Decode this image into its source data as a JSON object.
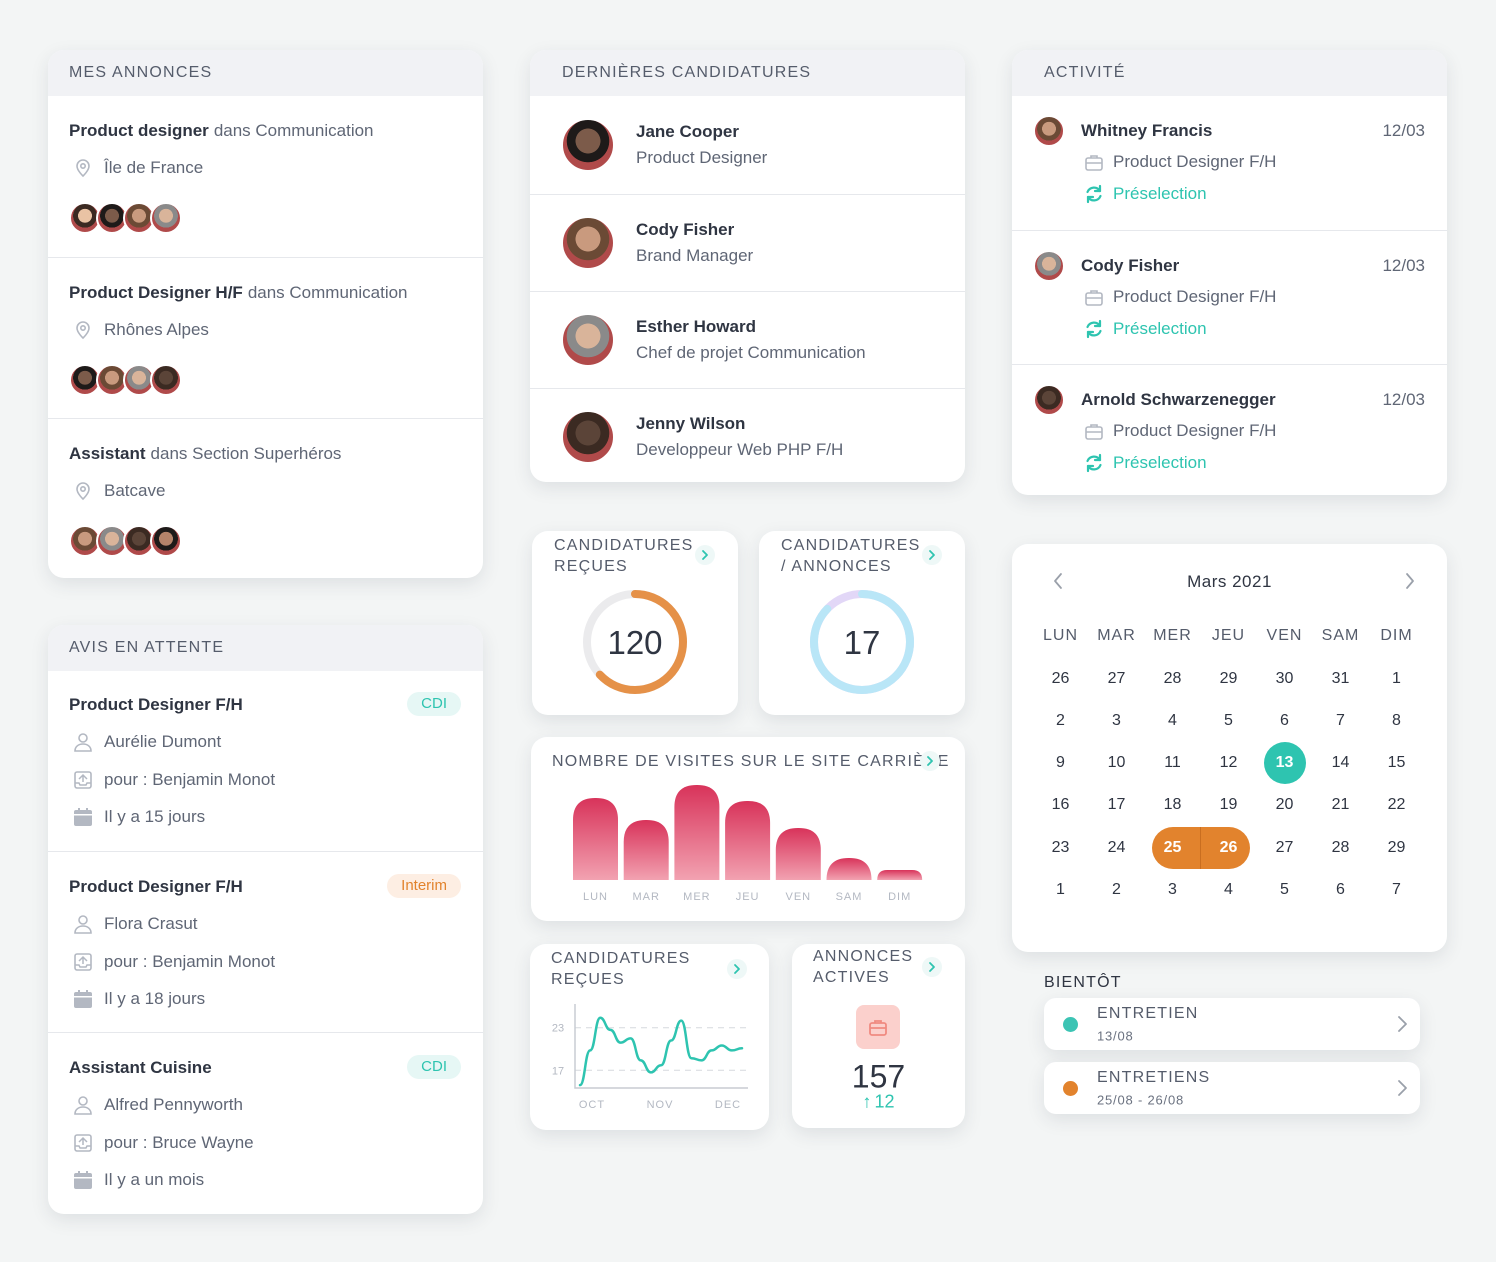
{
  "mes_annonces": {
    "title": "MES ANNONCES",
    "items": [
      {
        "job": "Product designer",
        "dans": "dans Communication",
        "location": "Île de France"
      },
      {
        "job": "Product Designer H/F",
        "dans": "dans Communication",
        "location": "Rhônes Alpes"
      },
      {
        "job": "Assistant",
        "dans": "dans Section Superhéros",
        "location": "Batcave"
      }
    ]
  },
  "avis": {
    "title": "AVIS EN ATTENTE",
    "items": [
      {
        "job": "Product Designer F/H",
        "tag": "CDI",
        "person": "Aurélie Dumont",
        "pour": "pour : Benjamin Monot",
        "when": "Il y a 15 jours"
      },
      {
        "job": "Product Designer F/H",
        "tag": "Interim",
        "person": "Flora Crasut",
        "pour": "pour : Benjamin Monot",
        "when": "Il y a 18 jours"
      },
      {
        "job": "Assistant Cuisine",
        "tag": "CDI",
        "person": "Alfred Pennyworth",
        "pour": "pour : Bruce Wayne",
        "when": "Il y a un mois"
      }
    ]
  },
  "candidatures": {
    "title": "DERNIÈRES CANDIDATURES",
    "items": [
      {
        "name": "Jane Cooper",
        "role": "Product Designer"
      },
      {
        "name": "Cody Fisher",
        "role": "Brand Manager"
      },
      {
        "name": "Esther Howard",
        "role": "Chef de projet Communication"
      },
      {
        "name": "Jenny Wilson",
        "role": "Developpeur Web PHP F/H"
      }
    ]
  },
  "activite": {
    "title": "ACTIVITÉ",
    "items": [
      {
        "name": "Whitney Francis",
        "date": "12/03",
        "job": "Product Designer F/H",
        "status": "Préselection"
      },
      {
        "name": "Cody Fisher",
        "date": "12/03",
        "job": "Product Designer F/H",
        "status": "Préselection"
      },
      {
        "name": "Arnold Schwarzenegger",
        "date": "12/03",
        "job": "Product Designer F/H",
        "status": "Préselection"
      }
    ]
  },
  "kpi_recues": {
    "title": "CANDIDATURES REÇUES",
    "value": 120
  },
  "kpi_annonces": {
    "title": "CANDIDATURES / ANNONCES",
    "value": 17
  },
  "visites": {
    "type": "bar",
    "title": "NOMBRE DE VISITES SUR LE SITE CARRIÈRE",
    "categories": [
      "LUN",
      "MAR",
      "MER",
      "JEU",
      "VEN",
      "SAM",
      "DIM"
    ],
    "values": [
      82,
      60,
      95,
      79,
      52,
      22,
      10
    ],
    "ylim": [
      0,
      100
    ]
  },
  "courbe": {
    "type": "line",
    "title": "CANDIDATURES REÇUES",
    "categories": [
      "OCT",
      "NOV",
      "DEC"
    ],
    "values": [
      14.9,
      19.8,
      24.4,
      22.7,
      20.9,
      21.5,
      18.4,
      16.7,
      17.7,
      21.2,
      24.0,
      18.7,
      18.4,
      19.8,
      20.5,
      19.8,
      20.1
    ],
    "ylim": [
      14.5,
      25.5
    ],
    "yticks": [
      17,
      23
    ],
    "color": "#2ec4b0"
  },
  "annonces_actives": {
    "title": "ANNONCES ACTIVES",
    "value": 157,
    "delta": 12
  },
  "calendrier": {
    "month": "Mars 2021",
    "weekdays": [
      "LUN",
      "MAR",
      "MER",
      "JEU",
      "VEN",
      "SAM",
      "DIM"
    ],
    "weeks": [
      [
        26,
        27,
        28,
        29,
        30,
        31,
        1
      ],
      [
        2,
        3,
        4,
        5,
        6,
        7,
        8
      ],
      [
        9,
        10,
        11,
        12,
        13,
        14,
        15
      ],
      [
        16,
        17,
        18,
        19,
        20,
        21,
        22
      ],
      [
        23,
        24,
        25,
        26,
        27,
        28,
        29
      ],
      [
        1,
        2,
        3,
        4,
        5,
        6,
        7
      ]
    ],
    "today": 13,
    "range": [
      25,
      26
    ]
  },
  "bientot": {
    "title": "BIENTÔT",
    "items": [
      {
        "label": "ENTRETIEN",
        "date": "13/08",
        "color": "#3cc4b4"
      },
      {
        "label": "ENTRETIENS",
        "date": "25/08 - 26/08",
        "color": "#e2832d"
      }
    ]
  }
}
